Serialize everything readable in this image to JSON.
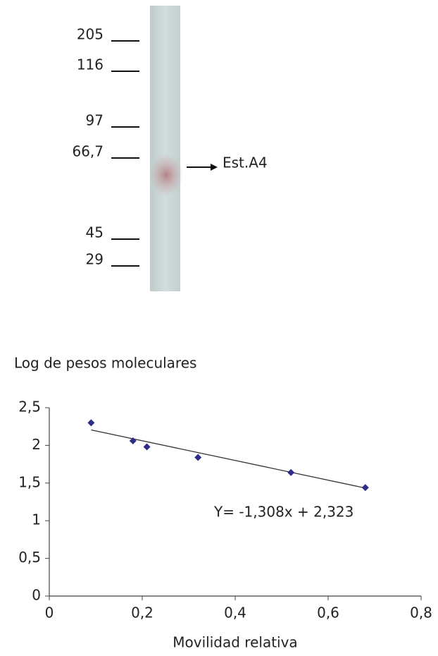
{
  "gel": {
    "markers": [
      "205",
      "116",
      "97",
      "66,7",
      "45",
      "29"
    ],
    "band_label": "Est.A4"
  },
  "chart_data": {
    "type": "scatter",
    "y_label": "Log de pesos moleculares",
    "x_label": "Movilidad relativa",
    "annotation": "Y= -1,308x + 2,323",
    "series": [
      {
        "color": "#2e2e8a",
        "x": [
          0.09,
          0.18,
          0.21,
          0.32,
          0.52,
          0.68
        ],
        "values": [
          2.3,
          2.06,
          1.98,
          1.84,
          1.64,
          1.44
        ]
      }
    ],
    "trendline": {
      "color": "#333333",
      "x": [
        0.09,
        0.685
      ],
      "values": [
        2.205,
        1.427
      ]
    },
    "xlim": [
      0,
      0.8
    ],
    "ylim": [
      0,
      2.5
    ],
    "xticks": [
      0,
      {
        "value": 0.2,
        "label": "0,2"
      },
      {
        "value": 0.4,
        "label": "0,4"
      },
      {
        "value": 0.6,
        "label": "0,6"
      },
      {
        "value": 0.8,
        "label": "0,8"
      }
    ],
    "yticks": [
      0,
      {
        "value": 0.5,
        "label": "0,5"
      },
      1,
      {
        "value": 1.5,
        "label": "1,5"
      },
      2,
      {
        "value": 2.5,
        "label": "2,5"
      }
    ]
  }
}
